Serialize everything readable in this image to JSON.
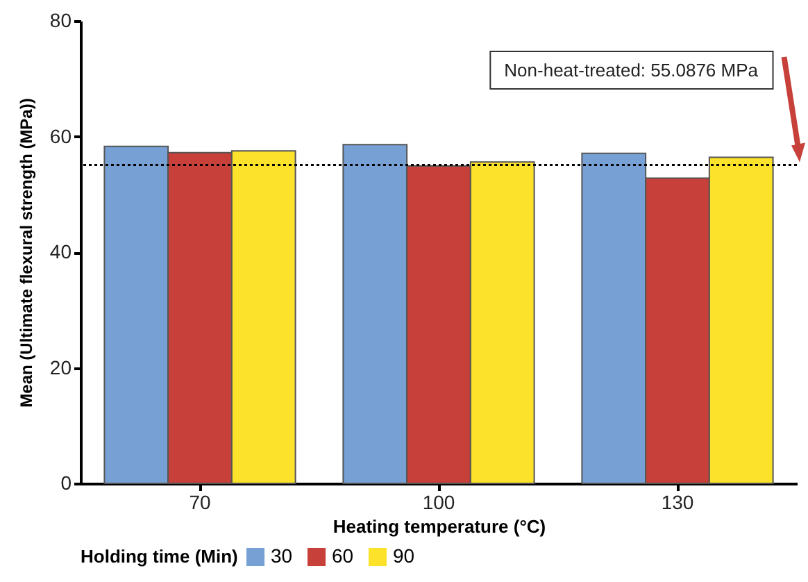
{
  "chart_data": {
    "type": "bar",
    "xlabel": "Heating temperature (°C)",
    "ylabel": "Mean (Ultimate flexural strength (MPa))",
    "legend_title": "Holding time (Min)",
    "categories": [
      "70",
      "100",
      "130"
    ],
    "series": [
      {
        "name": "30",
        "color": "#77a1d5",
        "values": [
          58.3,
          58.6,
          57.1
        ]
      },
      {
        "name": "60",
        "color": "#c7403a",
        "values": [
          57.2,
          54.9,
          52.8
        ]
      },
      {
        "name": "90",
        "color": "#fde22b",
        "values": [
          57.5,
          55.6,
          56.4
        ]
      }
    ],
    "ylim": [
      0,
      80
    ],
    "yticks": [
      0,
      20,
      40,
      60,
      80
    ],
    "grid": false,
    "legend": "bottom",
    "annotations": [
      "Non-heat-treated: 55.0876 MPa"
    ],
    "ref_lines": [
      {
        "axis": "y",
        "value": 55.0876,
        "line_style": "dotted",
        "color": "#000000"
      }
    ]
  }
}
